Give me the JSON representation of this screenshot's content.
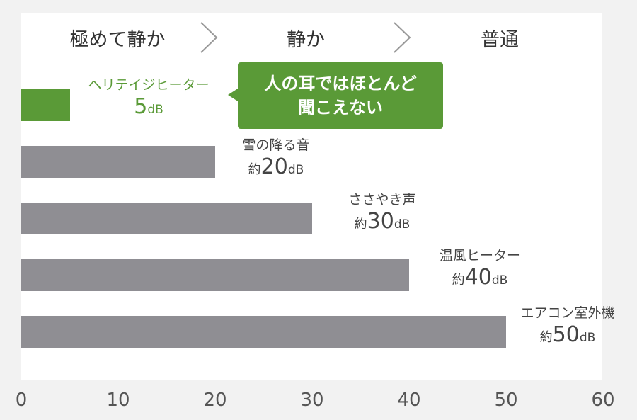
{
  "bands": [
    {
      "label": "極めて静か"
    },
    {
      "label": "静か"
    },
    {
      "label": "普通"
    }
  ],
  "callout": {
    "line1": "人の耳ではほとんど",
    "line2": "聞こえない"
  },
  "colors": {
    "highlight": "#5a9a37",
    "bar": "#8f8e93",
    "panel": "#ffffff",
    "background": "#f2f2f2"
  },
  "chart_data": {
    "type": "bar",
    "orientation": "horizontal",
    "categories": [
      "ヘリテイジヒーター",
      "雪の降る音",
      "ささやき声",
      "温風ヒーター",
      "エアコン室外機"
    ],
    "values": [
      5,
      20,
      30,
      40,
      50
    ],
    "value_labels": [
      {
        "prefix": "",
        "number": "5",
        "unit": "dB"
      },
      {
        "prefix": "約",
        "number": "20",
        "unit": "dB"
      },
      {
        "prefix": "約",
        "number": "30",
        "unit": "dB"
      },
      {
        "prefix": "約",
        "number": "40",
        "unit": "dB"
      },
      {
        "prefix": "約",
        "number": "50",
        "unit": "dB"
      }
    ],
    "highlight_index": 0,
    "xlim": [
      0,
      60
    ],
    "xticks": [
      "0",
      "10",
      "20",
      "30",
      "40",
      "50",
      "60"
    ],
    "grid": false
  }
}
